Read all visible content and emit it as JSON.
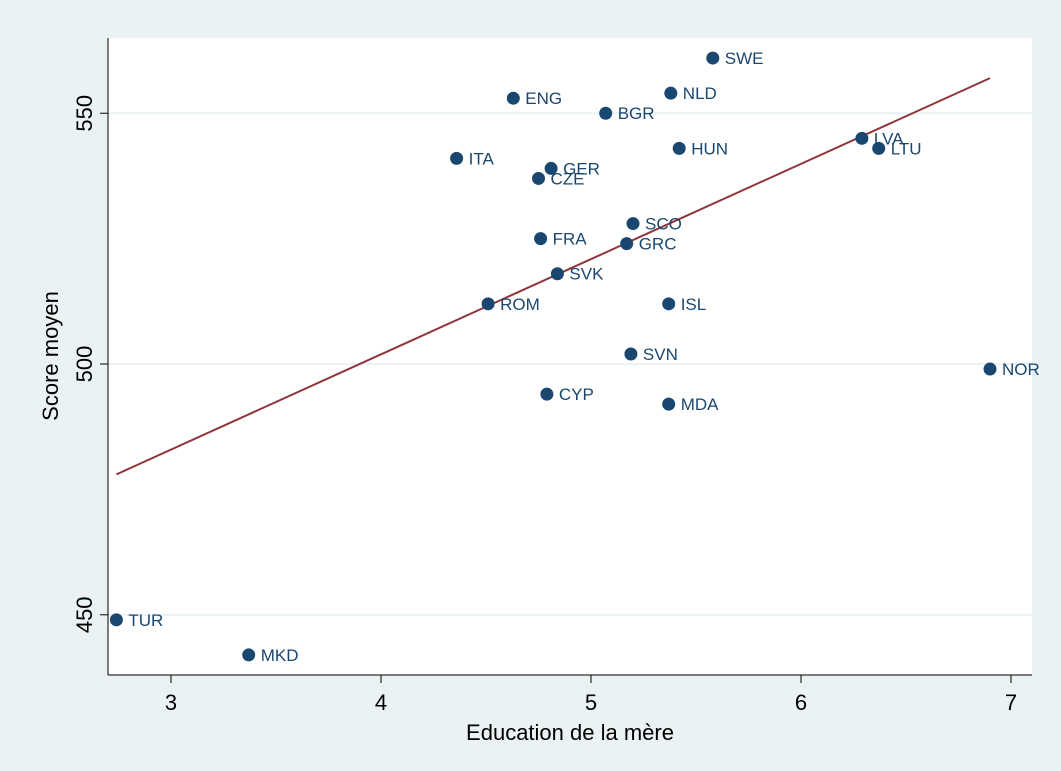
{
  "chart_data": {
    "type": "scatter",
    "xlabel": "Education de la mère",
    "ylabel": "Score moyen",
    "xlim": [
      2.7,
      7.1
    ],
    "ylim": [
      438,
      565
    ],
    "x_ticks": [
      3,
      4,
      5,
      6,
      7
    ],
    "y_ticks": [
      450,
      500,
      550
    ],
    "grid": "horizontal",
    "colors": {
      "background": "#eaf2f3",
      "plot_background": "#ffffff",
      "marker": "#1a476f",
      "label": "#1a476f",
      "fit_line": "#90353b",
      "gridline": "#eaf2f3"
    },
    "points": [
      {
        "label": "SWE",
        "x": 5.58,
        "y": 561
      },
      {
        "label": "NLD",
        "x": 5.38,
        "y": 554
      },
      {
        "label": "ENG",
        "x": 4.63,
        "y": 553
      },
      {
        "label": "BGR",
        "x": 5.07,
        "y": 550
      },
      {
        "label": "LVA",
        "x": 6.29,
        "y": 545
      },
      {
        "label": "LTU",
        "x": 6.37,
        "y": 543
      },
      {
        "label": "HUN",
        "x": 5.42,
        "y": 543
      },
      {
        "label": "ITA",
        "x": 4.36,
        "y": 541
      },
      {
        "label": "GER",
        "x": 4.81,
        "y": 539
      },
      {
        "label": "CZE",
        "x": 4.75,
        "y": 537
      },
      {
        "label": "SCO",
        "x": 5.2,
        "y": 528
      },
      {
        "label": "FRA",
        "x": 4.76,
        "y": 525
      },
      {
        "label": "GRC",
        "x": 5.17,
        "y": 524
      },
      {
        "label": "SVK",
        "x": 4.84,
        "y": 518
      },
      {
        "label": "ROM",
        "x": 4.51,
        "y": 512
      },
      {
        "label": "ISL",
        "x": 5.37,
        "y": 512
      },
      {
        "label": "SVN",
        "x": 5.19,
        "y": 502
      },
      {
        "label": "NOR",
        "x": 6.9,
        "y": 499
      },
      {
        "label": "CYP",
        "x": 4.79,
        "y": 494
      },
      {
        "label": "MDA",
        "x": 5.37,
        "y": 492
      },
      {
        "label": "TUR",
        "x": 2.74,
        "y": 449
      },
      {
        "label": "MKD",
        "x": 3.37,
        "y": 442
      }
    ],
    "fit_line": {
      "x": [
        2.74,
        6.9
      ],
      "y": [
        478,
        557
      ]
    }
  }
}
